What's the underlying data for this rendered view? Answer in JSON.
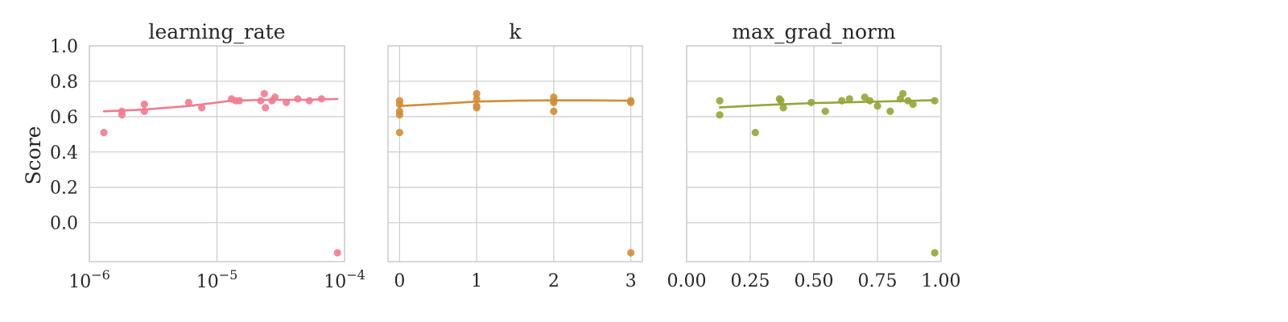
{
  "y_axis_label": "Score",
  "chart_data": [
    {
      "type": "scatter",
      "title": "learning_rate",
      "xlabel": "",
      "ylabel": "Score",
      "x_scale": "log",
      "xlim": [
        1e-06,
        0.0001
      ],
      "ylim": [
        -0.22,
        1.0
      ],
      "grid": true,
      "x_ticks": [
        {
          "v": 1e-06,
          "b": "10",
          "e": "−6"
        },
        {
          "v": 1e-05,
          "b": "10",
          "e": "−5"
        },
        {
          "v": 0.0001,
          "b": "10",
          "e": "−4"
        }
      ],
      "y_ticks": [
        "0.0",
        "0.2",
        "0.4",
        "0.6",
        "0.8",
        "1.0"
      ],
      "y_tick_values": [
        0.0,
        0.2,
        0.4,
        0.6,
        0.8,
        1.0
      ],
      "color": "#f07c8f",
      "points": [
        {
          "x": 1.3e-06,
          "y": 0.51
        },
        {
          "x": 1.8e-06,
          "y": 0.63
        },
        {
          "x": 1.8e-06,
          "y": 0.61
        },
        {
          "x": 2.7e-06,
          "y": 0.67
        },
        {
          "x": 2.7e-06,
          "y": 0.63
        },
        {
          "x": 6e-06,
          "y": 0.68
        },
        {
          "x": 7.6e-06,
          "y": 0.65
        },
        {
          "x": 1.3e-05,
          "y": 0.7
        },
        {
          "x": 1.4e-05,
          "y": 0.69
        },
        {
          "x": 1.5e-05,
          "y": 0.69
        },
        {
          "x": 2.2e-05,
          "y": 0.69
        },
        {
          "x": 2.35e-05,
          "y": 0.73
        },
        {
          "x": 2.4e-05,
          "y": 0.65
        },
        {
          "x": 2.7e-05,
          "y": 0.69
        },
        {
          "x": 2.85e-05,
          "y": 0.71
        },
        {
          "x": 3.5e-05,
          "y": 0.68
        },
        {
          "x": 4.3e-05,
          "y": 0.7
        },
        {
          "x": 5.3e-05,
          "y": 0.69
        },
        {
          "x": 6.6e-05,
          "y": 0.7
        },
        {
          "x": 8.8e-05,
          "y": -0.17
        }
      ],
      "trend": [
        {
          "x": 1.3e-06,
          "y": 0.63
        },
        {
          "x": 2.7e-06,
          "y": 0.64
        },
        {
          "x": 6e-06,
          "y": 0.66
        },
        {
          "x": 1.3e-05,
          "y": 0.69
        },
        {
          "x": 2.5e-05,
          "y": 0.695
        },
        {
          "x": 5e-05,
          "y": 0.695
        },
        {
          "x": 8.8e-05,
          "y": 0.7
        }
      ]
    },
    {
      "type": "scatter",
      "title": "k",
      "xlabel": "",
      "ylabel": "",
      "x_scale": "linear",
      "xlim": [
        -0.15,
        3.15
      ],
      "ylim": [
        -0.22,
        1.0
      ],
      "grid": true,
      "x_ticks": [
        {
          "v": 0,
          "t": "0"
        },
        {
          "v": 1,
          "t": "1"
        },
        {
          "v": 2,
          "t": "2"
        },
        {
          "v": 3,
          "t": "3"
        }
      ],
      "y_tick_values": [
        0.0,
        0.2,
        0.4,
        0.6,
        0.8,
        1.0
      ],
      "color": "#cf8e3a",
      "points": [
        {
          "x": 0,
          "y": 0.69
        },
        {
          "x": 0,
          "y": 0.67
        },
        {
          "x": 0,
          "y": 0.63
        },
        {
          "x": 0,
          "y": 0.61
        },
        {
          "x": 0,
          "y": 0.51
        },
        {
          "x": 1,
          "y": 0.73
        },
        {
          "x": 1,
          "y": 0.7
        },
        {
          "x": 1,
          "y": 0.66
        },
        {
          "x": 1,
          "y": 0.65
        },
        {
          "x": 2,
          "y": 0.71
        },
        {
          "x": 2,
          "y": 0.69
        },
        {
          "x": 2,
          "y": 0.68
        },
        {
          "x": 2,
          "y": 0.63
        },
        {
          "x": 3,
          "y": 0.69
        },
        {
          "x": 3,
          "y": 0.68
        },
        {
          "x": 3,
          "y": -0.17
        }
      ],
      "trend": [
        {
          "x": 0,
          "y": 0.66
        },
        {
          "x": 0.5,
          "y": 0.672
        },
        {
          "x": 1,
          "y": 0.685
        },
        {
          "x": 1.5,
          "y": 0.69
        },
        {
          "x": 2,
          "y": 0.692
        },
        {
          "x": 2.5,
          "y": 0.692
        },
        {
          "x": 3,
          "y": 0.69
        }
      ]
    },
    {
      "type": "scatter",
      "title": "max_grad_norm",
      "xlabel": "",
      "ylabel": "",
      "x_scale": "linear",
      "xlim": [
        0.0,
        1.0
      ],
      "ylim": [
        -0.22,
        1.0
      ],
      "grid": true,
      "x_ticks": [
        {
          "v": 0.0,
          "t": "0.00"
        },
        {
          "v": 0.25,
          "t": "0.25"
        },
        {
          "v": 0.5,
          "t": "0.50"
        },
        {
          "v": 0.75,
          "t": "0.75"
        },
        {
          "v": 1.0,
          "t": "1.00"
        }
      ],
      "y_tick_values": [
        0.0,
        0.2,
        0.4,
        0.6,
        0.8,
        1.0
      ],
      "color": "#96a43a",
      "points": [
        {
          "x": 0.13,
          "y": 0.69
        },
        {
          "x": 0.13,
          "y": 0.61
        },
        {
          "x": 0.27,
          "y": 0.51
        },
        {
          "x": 0.365,
          "y": 0.7
        },
        {
          "x": 0.37,
          "y": 0.69
        },
        {
          "x": 0.38,
          "y": 0.65
        },
        {
          "x": 0.49,
          "y": 0.68
        },
        {
          "x": 0.545,
          "y": 0.63
        },
        {
          "x": 0.61,
          "y": 0.69
        },
        {
          "x": 0.64,
          "y": 0.7
        },
        {
          "x": 0.7,
          "y": 0.71
        },
        {
          "x": 0.72,
          "y": 0.69
        },
        {
          "x": 0.75,
          "y": 0.66
        },
        {
          "x": 0.8,
          "y": 0.63
        },
        {
          "x": 0.84,
          "y": 0.7
        },
        {
          "x": 0.85,
          "y": 0.73
        },
        {
          "x": 0.87,
          "y": 0.69
        },
        {
          "x": 0.89,
          "y": 0.67
        },
        {
          "x": 0.975,
          "y": 0.69
        },
        {
          "x": 0.975,
          "y": -0.17
        }
      ],
      "trend": [
        {
          "x": 0.13,
          "y": 0.652
        },
        {
          "x": 0.3,
          "y": 0.665
        },
        {
          "x": 0.5,
          "y": 0.677
        },
        {
          "x": 0.7,
          "y": 0.683
        },
        {
          "x": 0.85,
          "y": 0.688
        },
        {
          "x": 0.975,
          "y": 0.693
        }
      ]
    }
  ]
}
